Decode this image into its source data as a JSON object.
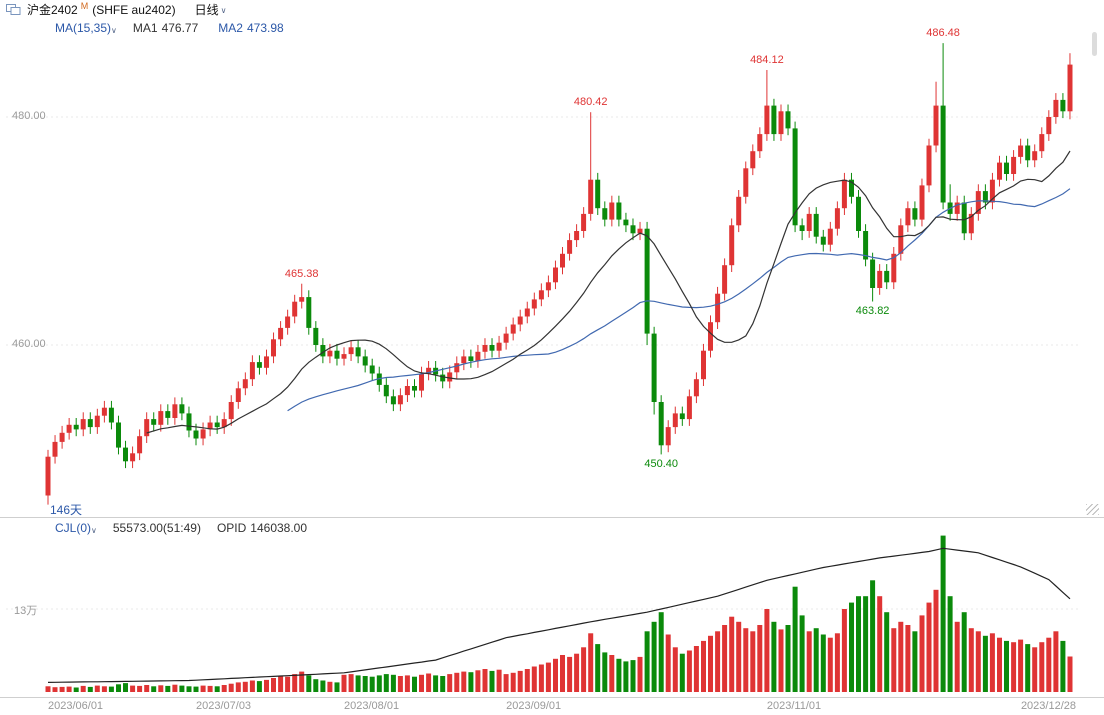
{
  "colors": {
    "up": "#df3434",
    "down": "#0b8a0b",
    "ma1": "#333333",
    "ma2": "#4169b0",
    "oi_line": "#222222",
    "header_blue": "#2c58a8",
    "axis_text": "#999999",
    "grid": "#e8e8e8"
  },
  "icons": {
    "caret": "∨"
  },
  "title_bar": {
    "symbol": "沪金2402",
    "superscript": "M",
    "exchange": "(SHFE au2402)",
    "period": "日线"
  },
  "ma_row": {
    "label": "MA(15,35)",
    "ma1_label": "MA1",
    "ma1_value": "476.77",
    "ma2_label": "MA2",
    "ma2_value": "473.98"
  },
  "volume_header": {
    "label": "CJL(0)",
    "value": "55573.00(51:49)",
    "opid_label": "OPID",
    "opid_value": "146038.00"
  },
  "chart_data": {
    "type": "candlestick+volume",
    "title": "沪金2402 (SHFE au2402) 日线",
    "day_count_label": "146天",
    "day_count": 146,
    "ma_periods": [
      15,
      35
    ],
    "ylim": [
      445,
      487
    ],
    "price_axis_labels": [
      {
        "text": "480.00",
        "value": 480
      },
      {
        "text": "460.00",
        "value": 460
      }
    ],
    "volume_axis_labels": [
      {
        "text": "13万",
        "value": 130000
      }
    ],
    "x_axis_labels": [
      {
        "index": 0,
        "text": "2023/06/01"
      },
      {
        "index": 21,
        "text": "2023/07/03"
      },
      {
        "index": 42,
        "text": "2023/08/01"
      },
      {
        "index": 65,
        "text": "2023/09/01"
      },
      {
        "index": 102,
        "text": "2023/11/01"
      },
      {
        "index": 145,
        "text": "2023/12/28",
        "align": "right"
      }
    ],
    "annotations": [
      {
        "index": 36,
        "price": 465.38,
        "text": "465.38",
        "type": "high"
      },
      {
        "index": 77,
        "price": 480.42,
        "text": "480.42",
        "type": "high"
      },
      {
        "index": 102,
        "price": 484.12,
        "text": "484.12",
        "type": "high"
      },
      {
        "index": 127,
        "price": 486.48,
        "text": "486.48",
        "type": "high"
      },
      {
        "index": 87,
        "price": 450.4,
        "text": "450.40",
        "type": "low"
      },
      {
        "index": 117,
        "price": 463.82,
        "text": "463.82",
        "type": "low"
      }
    ],
    "candles": [
      [
        446.8,
        450.8,
        446.0,
        450.2,
        9000
      ],
      [
        450.2,
        452.1,
        449.6,
        451.5,
        7500
      ],
      [
        451.5,
        452.9,
        450.9,
        452.3,
        8000
      ],
      [
        452.3,
        453.6,
        451.7,
        453.0,
        8500
      ],
      [
        453.0,
        453.6,
        452.0,
        452.6,
        7000
      ],
      [
        452.6,
        454.1,
        452.0,
        453.5,
        9500
      ],
      [
        453.5,
        454.1,
        452.2,
        452.8,
        8000
      ],
      [
        452.8,
        454.4,
        452.2,
        453.8,
        10000
      ],
      [
        453.8,
        455.1,
        453.2,
        454.5,
        9000
      ],
      [
        454.5,
        455.1,
        452.6,
        453.2,
        8500
      ],
      [
        453.2,
        453.8,
        450.4,
        451.0,
        12000
      ],
      [
        451.0,
        451.6,
        449.2,
        449.8,
        14000
      ],
      [
        449.8,
        451.1,
        449.2,
        450.5,
        10000
      ],
      [
        450.5,
        452.6,
        449.9,
        452.0,
        9500
      ],
      [
        452.0,
        454.1,
        451.4,
        453.5,
        11000
      ],
      [
        453.5,
        454.1,
        452.4,
        453.0,
        9000
      ],
      [
        453.0,
        454.8,
        452.4,
        454.2,
        10500
      ],
      [
        454.2,
        454.8,
        453.0,
        453.6,
        9500
      ],
      [
        453.6,
        455.4,
        453.0,
        454.8,
        11500
      ],
      [
        454.8,
        455.4,
        453.4,
        454.0,
        10000
      ],
      [
        454.0,
        454.6,
        451.9,
        452.5,
        9000
      ],
      [
        452.5,
        453.1,
        451.2,
        451.8,
        8500
      ],
      [
        451.8,
        453.2,
        451.2,
        452.6,
        10000
      ],
      [
        452.6,
        453.8,
        452.0,
        453.2,
        9500
      ],
      [
        453.2,
        453.8,
        452.2,
        452.8,
        9000
      ],
      [
        452.8,
        454.1,
        452.2,
        453.5,
        11000
      ],
      [
        453.5,
        455.6,
        452.9,
        455.0,
        13000
      ],
      [
        455.0,
        456.8,
        454.4,
        456.2,
        15000
      ],
      [
        456.2,
        457.6,
        455.6,
        457.0,
        16000
      ],
      [
        457.0,
        459.1,
        456.4,
        458.5,
        18000
      ],
      [
        458.5,
        459.1,
        457.4,
        458.0,
        17000
      ],
      [
        458.0,
        459.6,
        457.4,
        459.0,
        19000
      ],
      [
        459.0,
        461.1,
        458.4,
        460.5,
        22000
      ],
      [
        460.5,
        462.1,
        459.9,
        461.5,
        25000
      ],
      [
        461.5,
        463.1,
        460.9,
        462.5,
        24000
      ],
      [
        462.5,
        464.4,
        461.9,
        463.8,
        28000
      ],
      [
        463.8,
        465.38,
        463.2,
        464.2,
        32000
      ],
      [
        464.2,
        464.8,
        460.9,
        461.5,
        26000
      ],
      [
        461.5,
        462.1,
        459.4,
        460.0,
        20000
      ],
      [
        460.0,
        460.6,
        458.4,
        459.0,
        18000
      ],
      [
        459.0,
        460.1,
        458.4,
        459.5,
        16000
      ],
      [
        459.5,
        460.1,
        458.2,
        458.8,
        15000
      ],
      [
        458.8,
        459.8,
        458.2,
        459.2,
        27000
      ],
      [
        459.2,
        460.4,
        458.6,
        459.8,
        28000
      ],
      [
        459.8,
        460.4,
        458.4,
        459.0,
        26000
      ],
      [
        459.0,
        459.6,
        457.6,
        458.2,
        25000
      ],
      [
        458.2,
        458.8,
        456.9,
        457.5,
        24000
      ],
      [
        457.5,
        458.1,
        455.9,
        456.5,
        26000
      ],
      [
        456.5,
        457.1,
        454.9,
        455.5,
        28000
      ],
      [
        455.5,
        456.1,
        454.2,
        454.8,
        27000
      ],
      [
        454.8,
        456.2,
        454.2,
        455.6,
        25000
      ],
      [
        455.6,
        457.0,
        455.0,
        456.4,
        26000
      ],
      [
        456.4,
        457.0,
        455.4,
        456.0,
        24000
      ],
      [
        456.0,
        458.1,
        455.4,
        457.5,
        27000
      ],
      [
        457.5,
        458.6,
        456.9,
        458.0,
        29000
      ],
      [
        458.0,
        458.6,
        456.8,
        457.4,
        26000
      ],
      [
        457.4,
        458.0,
        456.2,
        456.8,
        25000
      ],
      [
        456.8,
        458.2,
        456.2,
        457.6,
        28000
      ],
      [
        457.6,
        459.0,
        457.0,
        458.4,
        30000
      ],
      [
        458.4,
        459.6,
        457.8,
        459.0,
        32000
      ],
      [
        459.0,
        459.6,
        458.0,
        458.6,
        31000
      ],
      [
        458.6,
        460.0,
        458.0,
        459.4,
        34000
      ],
      [
        459.4,
        460.6,
        458.8,
        460.0,
        36000
      ],
      [
        460.0,
        460.6,
        458.9,
        459.5,
        33000
      ],
      [
        459.5,
        460.8,
        458.9,
        460.2,
        35000
      ],
      [
        460.2,
        461.6,
        459.6,
        461.0,
        28000
      ],
      [
        461.0,
        462.4,
        460.4,
        461.8,
        30000
      ],
      [
        461.8,
        463.1,
        461.2,
        462.5,
        33000
      ],
      [
        462.5,
        463.8,
        461.9,
        463.2,
        36000
      ],
      [
        463.2,
        464.6,
        462.6,
        464.0,
        40000
      ],
      [
        464.0,
        465.4,
        463.4,
        464.8,
        43000
      ],
      [
        464.8,
        466.1,
        464.2,
        465.5,
        46000
      ],
      [
        465.5,
        467.4,
        464.9,
        466.8,
        52000
      ],
      [
        466.8,
        468.6,
        466.2,
        468.0,
        58000
      ],
      [
        468.0,
        469.8,
        467.4,
        469.2,
        55000
      ],
      [
        469.2,
        470.6,
        468.6,
        470.0,
        60000
      ],
      [
        470.0,
        472.1,
        469.4,
        471.5,
        70000
      ],
      [
        471.5,
        480.42,
        470.9,
        474.5,
        92000
      ],
      [
        474.5,
        475.1,
        471.4,
        472.0,
        75000
      ],
      [
        472.0,
        472.6,
        470.4,
        471.0,
        62000
      ],
      [
        471.0,
        473.1,
        470.4,
        472.5,
        58000
      ],
      [
        472.5,
        473.1,
        470.4,
        471.0,
        52000
      ],
      [
        471.0,
        471.6,
        469.9,
        470.5,
        48000
      ],
      [
        470.5,
        471.1,
        469.2,
        469.8,
        50000
      ],
      [
        469.8,
        470.8,
        469.2,
        470.2,
        55000
      ],
      [
        470.2,
        470.8,
        460.0,
        461.0,
        95000
      ],
      [
        461.0,
        461.6,
        453.9,
        455.0,
        110000
      ],
      [
        455.0,
        455.6,
        450.4,
        451.2,
        125000
      ],
      [
        451.2,
        453.4,
        450.6,
        452.8,
        90000
      ],
      [
        452.8,
        454.6,
        452.2,
        454.0,
        70000
      ],
      [
        454.0,
        454.6,
        452.9,
        453.5,
        60000
      ],
      [
        453.5,
        456.1,
        452.9,
        455.5,
        65000
      ],
      [
        455.5,
        457.6,
        454.9,
        457.0,
        72000
      ],
      [
        457.0,
        460.1,
        456.4,
        459.5,
        80000
      ],
      [
        459.5,
        462.6,
        458.9,
        462.0,
        88000
      ],
      [
        462.0,
        465.1,
        461.4,
        464.5,
        95000
      ],
      [
        464.5,
        467.6,
        463.9,
        467.0,
        105000
      ],
      [
        467.0,
        471.1,
        466.4,
        470.5,
        118000
      ],
      [
        470.5,
        473.6,
        469.9,
        473.0,
        110000
      ],
      [
        473.0,
        476.1,
        472.4,
        475.5,
        100000
      ],
      [
        475.5,
        477.6,
        474.9,
        477.0,
        95000
      ],
      [
        477.0,
        479.1,
        476.4,
        478.5,
        105000
      ],
      [
        478.5,
        484.12,
        477.9,
        481.0,
        130000
      ],
      [
        481.0,
        481.6,
        477.9,
        478.5,
        110000
      ],
      [
        478.5,
        481.1,
        477.9,
        480.5,
        98000
      ],
      [
        480.5,
        481.1,
        478.4,
        479.0,
        105000
      ],
      [
        479.0,
        479.6,
        469.9,
        470.5,
        165000
      ],
      [
        470.5,
        471.1,
        469.2,
        470.0,
        120000
      ],
      [
        470.0,
        472.1,
        469.4,
        471.5,
        95000
      ],
      [
        471.5,
        472.1,
        468.9,
        469.5,
        100000
      ],
      [
        469.5,
        470.1,
        468.2,
        468.8,
        90000
      ],
      [
        468.8,
        470.8,
        468.2,
        470.2,
        85000
      ],
      [
        470.2,
        472.6,
        469.6,
        472.0,
        92000
      ],
      [
        472.0,
        475.1,
        471.4,
        474.5,
        130000
      ],
      [
        474.5,
        475.1,
        472.4,
        473.0,
        140000
      ],
      [
        473.0,
        473.6,
        469.4,
        470.0,
        150000
      ],
      [
        470.0,
        470.6,
        466.9,
        467.5,
        150000
      ],
      [
        467.5,
        468.1,
        463.82,
        465.0,
        175000
      ],
      [
        465.0,
        467.1,
        464.4,
        466.5,
        150000
      ],
      [
        466.5,
        467.1,
        464.9,
        465.5,
        125000
      ],
      [
        465.5,
        468.6,
        464.9,
        468.0,
        100000
      ],
      [
        468.0,
        471.1,
        467.4,
        470.5,
        110000
      ],
      [
        470.5,
        472.6,
        469.9,
        472.0,
        105000
      ],
      [
        472.0,
        472.6,
        470.4,
        471.0,
        95000
      ],
      [
        471.0,
        474.6,
        470.4,
        474.0,
        120000
      ],
      [
        474.0,
        478.1,
        473.4,
        477.5,
        140000
      ],
      [
        477.5,
        483.1,
        476.9,
        481.0,
        160000
      ],
      [
        481.0,
        486.48,
        471.9,
        472.5,
        245000
      ],
      [
        472.5,
        474.1,
        470.9,
        471.5,
        150000
      ],
      [
        471.5,
        473.1,
        470.9,
        472.5,
        110000
      ],
      [
        472.5,
        473.1,
        469.2,
        469.8,
        125000
      ],
      [
        469.8,
        472.1,
        469.2,
        471.5,
        100000
      ],
      [
        471.5,
        474.1,
        470.9,
        473.5,
        95000
      ],
      [
        473.5,
        474.1,
        471.9,
        472.5,
        88000
      ],
      [
        472.5,
        475.1,
        471.9,
        474.5,
        92000
      ],
      [
        474.5,
        476.6,
        473.9,
        476.0,
        85000
      ],
      [
        476.0,
        476.6,
        474.4,
        475.0,
        80000
      ],
      [
        475.0,
        477.1,
        474.4,
        476.5,
        78000
      ],
      [
        476.5,
        478.1,
        475.9,
        477.5,
        82000
      ],
      [
        477.5,
        478.1,
        475.6,
        476.2,
        75000
      ],
      [
        476.2,
        477.6,
        475.6,
        477.0,
        70000
      ],
      [
        477.0,
        479.1,
        476.4,
        478.5,
        78000
      ],
      [
        478.5,
        480.6,
        477.9,
        480.0,
        85000
      ],
      [
        480.0,
        482.1,
        479.4,
        481.5,
        95000
      ],
      [
        481.5,
        482.1,
        479.9,
        480.5,
        80000
      ],
      [
        480.5,
        485.6,
        479.8,
        484.6,
        55573
      ]
    ],
    "open_interest": [
      15000,
      15150,
      15300,
      15450,
      15600,
      15750,
      15900,
      16050,
      16200,
      16350,
      16500,
      16650,
      16800,
      16950,
      17100,
      17250,
      17400,
      17550,
      17700,
      17850,
      18000,
      18500,
      19100,
      19600,
      20200,
      20700,
      21300,
      21800,
      22400,
      22900,
      23500,
      24000,
      24500,
      25100,
      25600,
      26200,
      26700,
      27300,
      27800,
      28400,
      28900,
      29500,
      30000,
      31500,
      33100,
      34600,
      36200,
      37700,
      39200,
      40800,
      42300,
      43800,
      45400,
      46900,
      48500,
      50000,
      53500,
      57000,
      60500,
      64000,
      67500,
      71000,
      74500,
      78000,
      81500,
      85000,
      87100,
      89200,
      91200,
      93300,
      95400,
      97500,
      99600,
      101700,
      103700,
      105800,
      107900,
      110000,
      111900,
      113800,
      115600,
      117500,
      119400,
      121300,
      123100,
      125000,
      127500,
      130000,
      132500,
      135000,
      137500,
      140000,
      142500,
      145000,
      147500,
      150000,
      153600,
      157100,
      160700,
      164300,
      167900,
      171400,
      175000,
      177500,
      180000,
      182500,
      185000,
      187500,
      190000,
      192500,
      195000,
      196900,
      198800,
      200600,
      202500,
      204400,
      206300,
      208100,
      210000,
      211400,
      212900,
      214300,
      215700,
      217100,
      218600,
      220000,
      222500,
      225000,
      223600,
      222200,
      220800,
      219400,
      218000,
      214300,
      210700,
      207000,
      203300,
      199700,
      196000,
      191000,
      186000,
      181000,
      176000,
      166000,
      156000,
      146038
    ]
  }
}
